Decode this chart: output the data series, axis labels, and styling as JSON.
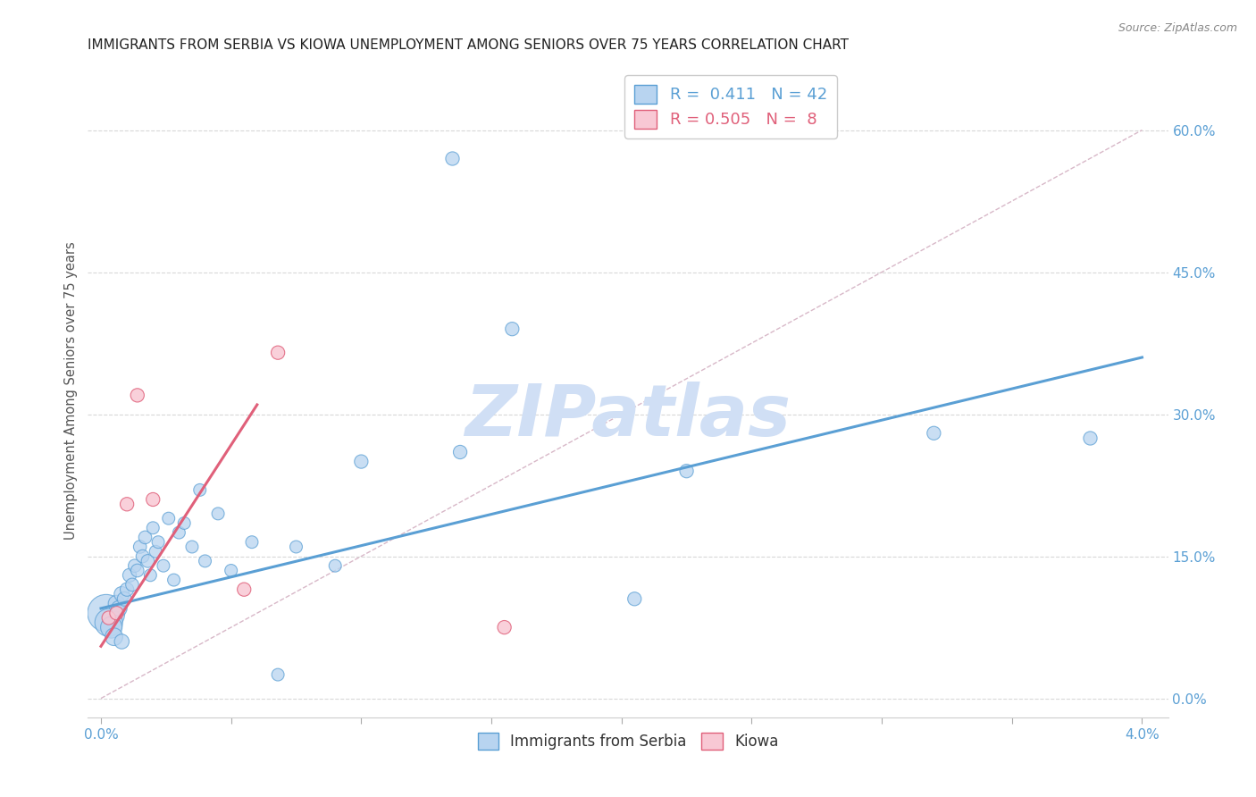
{
  "title": "IMMIGRANTS FROM SERBIA VS KIOWA UNEMPLOYMENT AMONG SENIORS OVER 75 YEARS CORRELATION CHART",
  "source": "Source: ZipAtlas.com",
  "ylabel_left": "Unemployment Among Seniors over 75 years",
  "x_tick_vals": [
    0.0,
    0.5,
    1.0,
    1.5,
    2.0,
    2.5,
    3.0,
    3.5,
    4.0
  ],
  "x_tick_labels": [
    "0.0%",
    "",
    "",
    "",
    "",
    "",
    "",
    "",
    "4.0%"
  ],
  "y_ticks_right": [
    0.0,
    15.0,
    30.0,
    45.0,
    60.0
  ],
  "y_tick_labels_right": [
    "0.0%",
    "15.0%",
    "30.0%",
    "45.0%",
    "60.0%"
  ],
  "xlim": [
    -0.05,
    4.1
  ],
  "ylim": [
    -2.0,
    67.0
  ],
  "serbia_R": 0.411,
  "serbia_N": 42,
  "kiowa_R": 0.505,
  "kiowa_N": 8,
  "serbia_color": "#b8d4f0",
  "serbia_edge_color": "#5a9fd4",
  "kiowa_color": "#f8c8d4",
  "kiowa_edge_color": "#e0607a",
  "watermark": "ZIPatlas",
  "watermark_color": "#d0dff5",
  "title_fontsize": 11,
  "serbia_scatter_x": [
    0.02,
    0.03,
    0.04,
    0.05,
    0.06,
    0.07,
    0.08,
    0.08,
    0.09,
    0.1,
    0.11,
    0.12,
    0.13,
    0.14,
    0.15,
    0.16,
    0.17,
    0.18,
    0.19,
    0.2,
    0.21,
    0.22,
    0.24,
    0.26,
    0.28,
    0.3,
    0.32,
    0.35,
    0.38,
    0.4,
    0.45,
    0.5,
    0.58,
    0.68,
    0.75,
    0.9,
    1.0,
    1.38,
    1.58,
    2.05,
    2.25,
    3.2
  ],
  "serbia_scatter_y": [
    9.0,
    8.0,
    7.5,
    6.5,
    10.0,
    9.5,
    11.0,
    6.0,
    10.5,
    11.5,
    13.0,
    12.0,
    14.0,
    13.5,
    16.0,
    15.0,
    17.0,
    14.5,
    13.0,
    18.0,
    15.5,
    16.5,
    14.0,
    19.0,
    12.5,
    17.5,
    18.5,
    16.0,
    22.0,
    14.5,
    19.5,
    13.5,
    16.5,
    2.5,
    16.0,
    14.0,
    25.0,
    26.0,
    39.0,
    10.5,
    24.0,
    28.0
  ],
  "serbia_scatter_sizes": [
    900,
    500,
    300,
    200,
    180,
    160,
    150,
    140,
    130,
    120,
    120,
    110,
    110,
    110,
    110,
    110,
    110,
    110,
    100,
    100,
    100,
    100,
    100,
    100,
    100,
    100,
    100,
    100,
    100,
    100,
    100,
    100,
    100,
    100,
    100,
    100,
    120,
    120,
    120,
    120,
    120,
    120
  ],
  "serbia_outlier_x": 1.35,
  "serbia_outlier_y": 57.0,
  "serbia_outlier_size": 120,
  "serbia_rightmost_x": 3.8,
  "serbia_rightmost_y": 27.5,
  "serbia_rightmost_size": 120,
  "kiowa_scatter_x": [
    0.03,
    0.06,
    0.1,
    0.14,
    0.2,
    0.55,
    0.68,
    1.55
  ],
  "kiowa_scatter_y": [
    8.5,
    9.0,
    20.5,
    32.0,
    21.0,
    11.5,
    36.5,
    7.5
  ],
  "kiowa_scatter_sizes": [
    120,
    120,
    120,
    120,
    120,
    120,
    120,
    120
  ],
  "serbia_line_x0": 0.0,
  "serbia_line_x1": 4.0,
  "serbia_line_y0": 9.5,
  "serbia_line_y1": 36.0,
  "kiowa_line_x0": 0.0,
  "kiowa_line_x1": 0.6,
  "kiowa_line_y0": 5.5,
  "kiowa_line_y1": 31.0,
  "diag_line_x0": 0.0,
  "diag_line_x1": 4.0,
  "diag_line_y0": 0.0,
  "diag_line_y1": 60.0
}
